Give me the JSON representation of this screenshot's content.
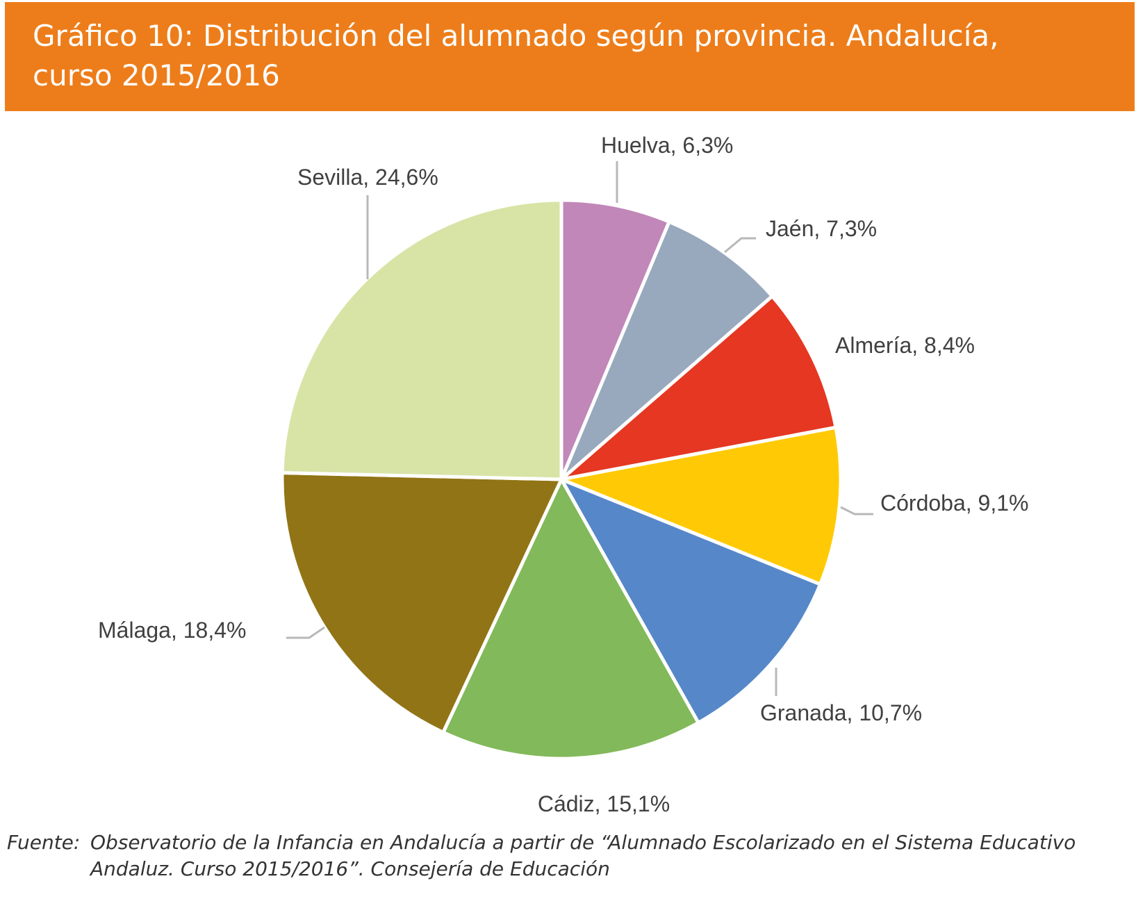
{
  "header": {
    "title_line1": "Gráfico 10: Distribución del alumnado según provincia. Andalucía,",
    "title_line2": "curso 2015/2016"
  },
  "chart_data": {
    "type": "pie",
    "title": "Gráfico 10: Distribución del alumnado según provincia. Andalucía, curso 2015/2016",
    "slices": [
      {
        "name": "Huelva",
        "value": 6.3,
        "label": "Huelva, 6,3%",
        "color": "#C187B8"
      },
      {
        "name": "Jaén",
        "value": 7.3,
        "label": "Jaén, 7,3%",
        "color": "#98A9BE"
      },
      {
        "name": "Almería",
        "value": 8.4,
        "label": "Almería, 8,4%",
        "color": "#E53722"
      },
      {
        "name": "Córdoba",
        "value": 9.1,
        "label": "Córdoba, 9,1%",
        "color": "#FFCA05"
      },
      {
        "name": "Granada",
        "value": 10.7,
        "label": "Granada, 10,7%",
        "color": "#5687C9"
      },
      {
        "name": "Cádiz",
        "value": 15.1,
        "label": "Cádiz, 15,1%",
        "color": "#82B95A"
      },
      {
        "name": "Málaga",
        "value": 18.4,
        "label": "Málaga, 18,4%",
        "color": "#917415"
      },
      {
        "name": "Sevilla",
        "value": 24.6,
        "label": "Sevilla, 24,6%",
        "color": "#D7E4A6"
      }
    ],
    "start": "top",
    "direction": "clockwise",
    "legend": "none",
    "data_labels": "outside with leader lines"
  },
  "source": {
    "label": "Fuente:",
    "line1": "Observatorio de la Infancia en Andalucía a partir de “Alumnado Escolarizado en el Sistema Educativo",
    "line2": "Andaluz. Curso 2015/2016”. Consejería de Educación"
  }
}
